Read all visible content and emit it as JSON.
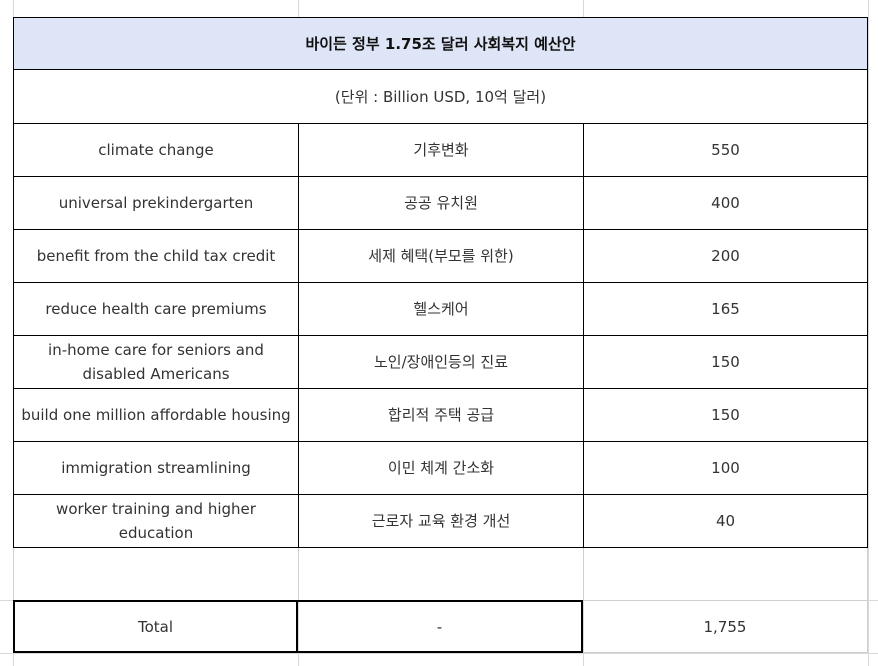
{
  "title": "바이든 정부 1.75조 달러 사회복지 예산안",
  "unit": "(단위 : Billion USD, 10억 달러)",
  "rows": [
    {
      "en": "climate change",
      "ko": "기후변화",
      "value": "550"
    },
    {
      "en": "universal prekindergarten",
      "ko": "공공 유치원",
      "value": "400"
    },
    {
      "en": "benefit from the child tax credit",
      "ko": "세제 혜택(부모를 위한)",
      "value": "200"
    },
    {
      "en": "reduce health care premiums",
      "ko": "헬스케어",
      "value": "165"
    },
    {
      "en": "in-home care for seniors and disabled Americans",
      "ko": "노인/장애인등의 진료",
      "value": "150"
    },
    {
      "en": "build one million affordable housing",
      "ko": "합리적 주택 공급",
      "value": "150"
    },
    {
      "en": "immigration streamlining",
      "ko": "이민 체계 간소화",
      "value": "100"
    },
    {
      "en": "worker training and higher education",
      "ko": "근로자 교육 환경 개선",
      "value": "40"
    }
  ],
  "total": {
    "label": "Total",
    "ko": "-",
    "value": "1,755"
  }
}
